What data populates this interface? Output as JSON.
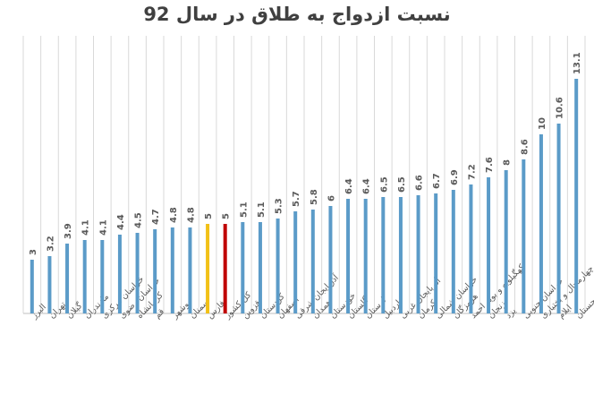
{
  "chart_data": {
    "type": "bar",
    "title": "نسبت ازدواج به طلاق در سال 92",
    "xlabel": "",
    "ylabel": "",
    "ylim": [
      0,
      14
    ],
    "grid": "vertical",
    "categories": [
      "البرز",
      "تهران",
      "گیلان",
      "مازندران",
      "خراسان مرکزی",
      "خراسان رضوی",
      "کرمانشاه",
      "قم",
      "بوشهر",
      "سمنان",
      "فارس",
      "کل کشور",
      "قزوین",
      "کردستان",
      "اصفهان",
      "آذربایجان شرقی",
      "همدان",
      "خوزستان",
      "گلستان",
      "لرستان",
      "اردبیل",
      "آذربایجان غربی",
      "کرمان",
      "خراسان شمالی",
      "هرمزگان",
      "کهگیلویه و بویر احمد",
      "زنجان",
      "یزد",
      "خراسان جنوبی",
      "چهارمحال و بختیاری",
      "ایلام",
      "سیستان و بلوچستان"
    ],
    "values": [
      3,
      3.2,
      3.9,
      4.1,
      4.1,
      4.4,
      4.5,
      4.7,
      4.8,
      4.8,
      5,
      5,
      5.1,
      5.1,
      5.3,
      5.7,
      5.8,
      6,
      6.4,
      6.4,
      6.5,
      6.5,
      6.6,
      6.7,
      6.9,
      7.2,
      7.6,
      8,
      8.6,
      10,
      10.6,
      13.1
    ],
    "value_labels": [
      "3",
      "3.2",
      "3.9",
      "4.1",
      "4.1",
      "4.4",
      "4.5",
      "4.7",
      "4.8",
      "4.8",
      "5",
      "5",
      "5.1",
      "5.1",
      "5.3",
      "5.7",
      "5.8",
      "6",
      "6.4",
      "6.4",
      "6.5",
      "6.5",
      "6.6",
      "6.7",
      "6.9",
      "7.2",
      "7.6",
      "8",
      "8.6",
      "10",
      "10.6",
      "13.1"
    ],
    "colors": {
      "default": "#5b9bc8",
      "highlights": {
        "فارس": "#f2c117",
        "کل کشور": "#c00000"
      },
      "gridline": "#d9d9d9",
      "axis": "#bfbfbf",
      "label": "#595959"
    }
  }
}
